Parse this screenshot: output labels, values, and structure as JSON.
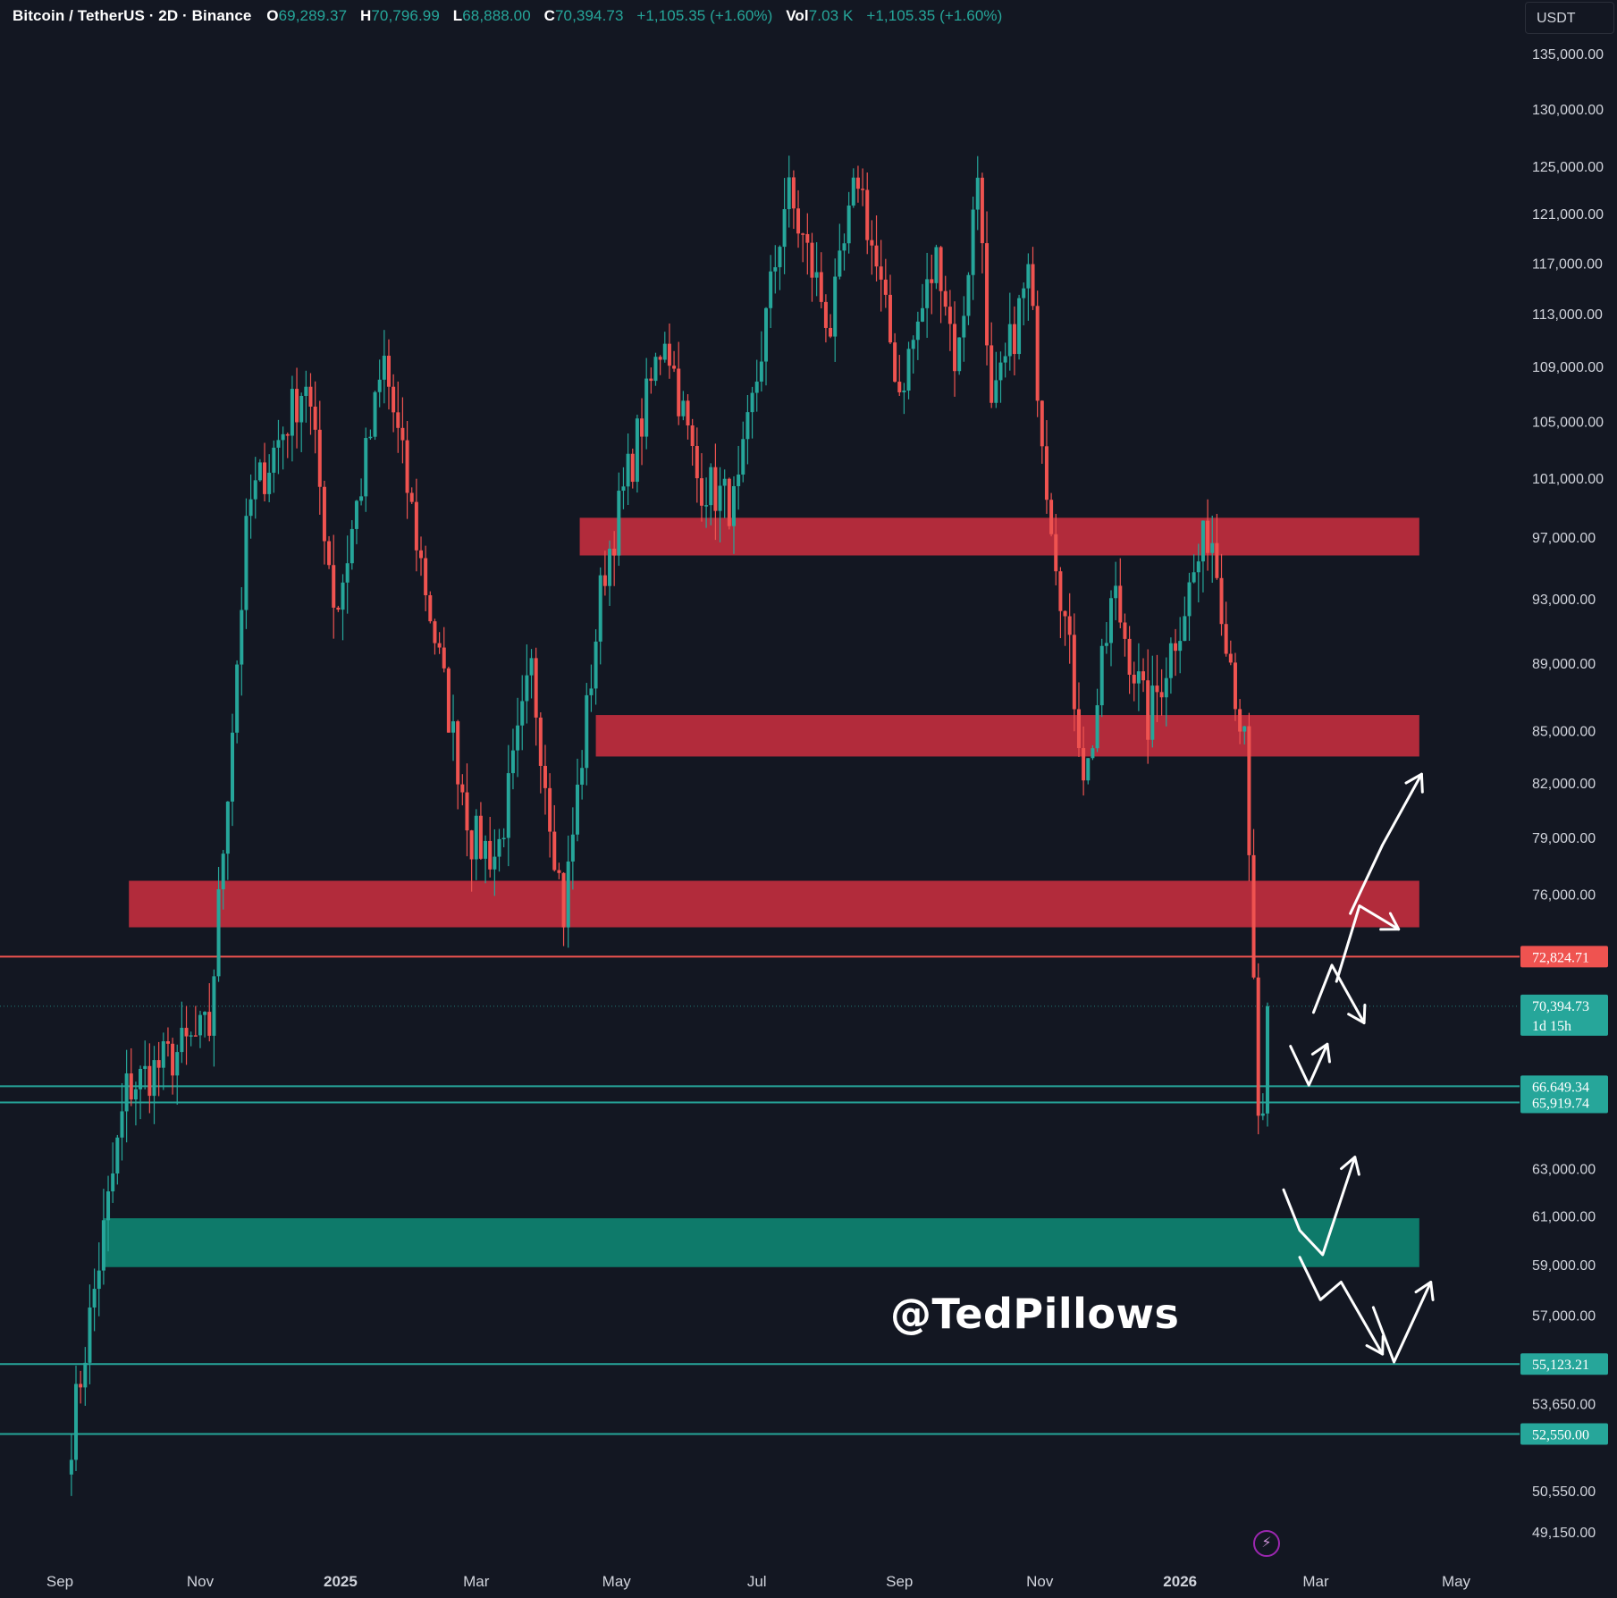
{
  "header": {
    "symbol": "Bitcoin / TetherUS · 2D · Binance",
    "open_label": "O",
    "open": "69,289.37",
    "high_label": "H",
    "high": "70,796.99",
    "low_label": "L",
    "low": "68,888.00",
    "close_label": "C",
    "close": "70,394.73",
    "change": "+1,105.35 (+1.60%)",
    "vol_label": "Vol",
    "vol": "7.03 K",
    "vol_change": "+1,105.35 (+1.60%)"
  },
  "currency_button": "USDT",
  "watermark": "@TedPillows",
  "flash_icon": "lightning-icon",
  "colors": {
    "background": "#131722",
    "up": "#26a69a",
    "down": "#ef5350",
    "resistance_zone": "#b22b3b",
    "support_zone": "#0e7a6a",
    "text": "#d1d4dc"
  },
  "chart_data": {
    "type": "candlestick",
    "scale": "log",
    "timeframe": "2D",
    "x_ticks": [
      "Sep",
      "Nov",
      "2025",
      "Mar",
      "May",
      "Jul",
      "Sep",
      "Nov",
      "2026",
      "Mar",
      "May"
    ],
    "x_tick_dates": [
      "2024-09-01",
      "2024-11-01",
      "2025-01-01",
      "2025-03-01",
      "2025-05-01",
      "2025-07-01",
      "2025-09-01",
      "2025-11-01",
      "2026-01-01",
      "2026-03-01",
      "2026-05-01"
    ],
    "y_ticks": [
      {
        "value": 135000,
        "label": "135,000.00"
      },
      {
        "value": 130000,
        "label": "130,000.00"
      },
      {
        "value": 125000,
        "label": "125,000.00"
      },
      {
        "value": 121000,
        "label": "121,000.00"
      },
      {
        "value": 117000,
        "label": "117,000.00"
      },
      {
        "value": 113000,
        "label": "113,000.00"
      },
      {
        "value": 109000,
        "label": "109,000.00"
      },
      {
        "value": 105000,
        "label": "105,000.00"
      },
      {
        "value": 101000,
        "label": "101,000.00"
      },
      {
        "value": 97000,
        "label": "97,000.00"
      },
      {
        "value": 93000,
        "label": "93,000.00"
      },
      {
        "value": 89000,
        "label": "89,000.00"
      },
      {
        "value": 85000,
        "label": "85,000.00"
      },
      {
        "value": 82000,
        "label": "82,000.00"
      },
      {
        "value": 79000,
        "label": "79,000.00"
      },
      {
        "value": 76000,
        "label": "76,000.00"
      },
      {
        "value": 63000,
        "label": "63,000.00"
      },
      {
        "value": 61000,
        "label": "61,000.00"
      },
      {
        "value": 59000,
        "label": "59,000.00"
      },
      {
        "value": 57000,
        "label": "57,000.00"
      },
      {
        "value": 53650,
        "label": "53,650.00"
      },
      {
        "value": 50550,
        "label": "50,550.00"
      },
      {
        "value": 49150,
        "label": "49,150.00"
      }
    ],
    "price_labels": [
      {
        "value": 72824.71,
        "label": "72,824.71",
        "color": "#ef5350"
      },
      {
        "value": 70394.73,
        "label": "70,394.73",
        "sub": "1d 15h",
        "color": "#26a69a"
      },
      {
        "value": 66649.34,
        "label": "66,649.34",
        "color": "#26a69a"
      },
      {
        "value": 65919.74,
        "label": "65,919.74",
        "color": "#26a69a"
      },
      {
        "value": 55123.21,
        "label": "55,123.21",
        "color": "#26a69a"
      },
      {
        "value": 52550.0,
        "label": "52,550.00",
        "color": "#26a69a"
      }
    ],
    "horizontal_lines": [
      {
        "value": 72824.71,
        "color": "#ef5350"
      },
      {
        "value": 66649.34,
        "color": "#26a69a"
      },
      {
        "value": 65919.74,
        "color": "#26a69a"
      },
      {
        "value": 55123.21,
        "color": "#26a69a"
      },
      {
        "value": 52550.0,
        "color": "#26a69a"
      }
    ],
    "zones": [
      {
        "kind": "resistance",
        "from": "2025-04-15",
        "to": "2026-04-15",
        "low": 95800,
        "high": 98300
      },
      {
        "kind": "resistance",
        "from": "2025-04-22",
        "to": "2026-04-15",
        "low": 83500,
        "high": 85900
      },
      {
        "kind": "resistance",
        "from": "2024-10-01",
        "to": "2026-04-15",
        "low": 74300,
        "high": 76700
      },
      {
        "kind": "support",
        "from": "2024-09-20",
        "to": "2026-04-15",
        "low": 58900,
        "high": 60900
      }
    ],
    "anchors": [
      {
        "date": "2024-09-06",
        "price": 52550
      },
      {
        "date": "2024-09-30",
        "price": 66500
      },
      {
        "date": "2024-11-05",
        "price": 69300
      },
      {
        "date": "2024-11-22",
        "price": 99000
      },
      {
        "date": "2024-12-17",
        "price": 108100
      },
      {
        "date": "2024-12-30",
        "price": 92000
      },
      {
        "date": "2025-01-20",
        "price": 109300
      },
      {
        "date": "2025-02-27",
        "price": 79000
      },
      {
        "date": "2025-03-10",
        "price": 78000
      },
      {
        "date": "2025-03-25",
        "price": 88500
      },
      {
        "date": "2025-04-08",
        "price": 75000
      },
      {
        "date": "2025-04-25",
        "price": 94500
      },
      {
        "date": "2025-05-22",
        "price": 111800
      },
      {
        "date": "2025-06-05",
        "price": 101000
      },
      {
        "date": "2025-06-22",
        "price": 99000
      },
      {
        "date": "2025-07-14",
        "price": 123000
      },
      {
        "date": "2025-08-02",
        "price": 112000
      },
      {
        "date": "2025-08-14",
        "price": 124400
      },
      {
        "date": "2025-09-01",
        "price": 107300
      },
      {
        "date": "2025-09-18",
        "price": 117900
      },
      {
        "date": "2025-09-26",
        "price": 108700
      },
      {
        "date": "2025-10-06",
        "price": 126200
      },
      {
        "date": "2025-10-10",
        "price": 104500
      },
      {
        "date": "2025-10-27",
        "price": 116000
      },
      {
        "date": "2025-11-04",
        "price": 101000
      },
      {
        "date": "2025-11-21",
        "price": 82000
      },
      {
        "date": "2025-12-03",
        "price": 93500
      },
      {
        "date": "2025-12-18",
        "price": 85500
      },
      {
        "date": "2026-01-14",
        "price": 97900
      },
      {
        "date": "2026-01-29",
        "price": 84000
      },
      {
        "date": "2026-02-05",
        "price": 62800
      },
      {
        "date": "2026-02-09",
        "price": 70394.73
      }
    ],
    "projections": [
      [
        [
          "2026-02-18",
          68500
        ],
        [
          "2026-02-26",
          66700
        ],
        [
          "2026-03-06",
          68600
        ]
      ],
      [
        [
          "2026-02-28",
          70100
        ],
        [
          "2026-03-08",
          72400
        ],
        [
          "2026-03-22",
          69600
        ]
      ],
      [
        [
          "2026-03-10",
          71600
        ],
        [
          "2026-03-20",
          75400
        ],
        [
          "2026-04-06",
          74200
        ]
      ],
      [
        [
          "2026-03-16",
          75000
        ],
        [
          "2026-03-30",
          78600
        ],
        [
          "2026-04-16",
          82500
        ]
      ],
      [
        [
          "2026-02-15",
          62100
        ],
        [
          "2026-02-22",
          60400
        ],
        [
          "2026-03-04",
          59400
        ],
        [
          "2026-03-18",
          63500
        ]
      ],
      [
        [
          "2026-02-22",
          59300
        ],
        [
          "2026-03-03",
          57600
        ],
        [
          "2026-03-12",
          58300
        ],
        [
          "2026-03-30",
          55500
        ]
      ],
      [
        [
          "2026-03-26",
          57300
        ],
        [
          "2026-04-04",
          55200
        ],
        [
          "2026-04-20",
          58300
        ]
      ]
    ]
  }
}
